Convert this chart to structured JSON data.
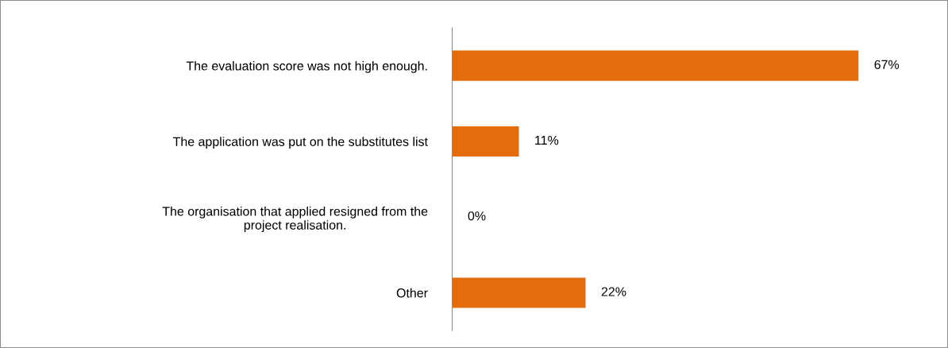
{
  "chart_data": {
    "type": "bar",
    "orientation": "horizontal",
    "categories": [
      "The evaluation score was not high enough.",
      "The application was put on the substitutes list",
      "The organisation that applied resigned from the\nproject realisation.",
      "Other"
    ],
    "values": [
      67,
      11,
      0,
      22
    ],
    "value_labels": [
      "67%",
      "11%",
      "0%",
      "22%"
    ],
    "color": "#e46c0a",
    "grid": false,
    "legend": false
  }
}
